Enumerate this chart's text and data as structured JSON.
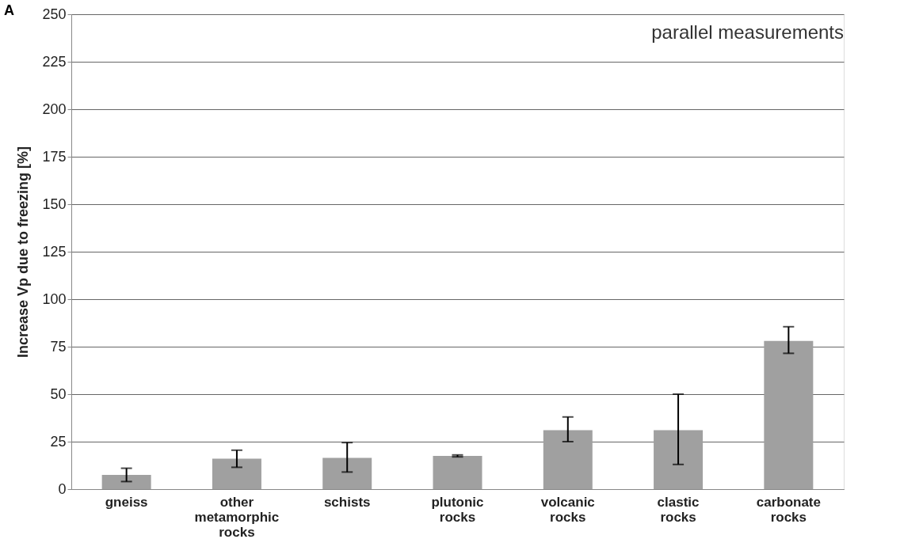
{
  "chart_data": {
    "type": "bar",
    "title": "A",
    "ylabel": "Increase Vp due to freezing [%]",
    "categories": [
      "gneiss",
      "other metamorphic rocks",
      "schists",
      "plutonic rocks",
      "volcanic rocks",
      "clastic rocks",
      "carbonate rocks"
    ],
    "values": [
      7.5,
      16,
      16.5,
      17.5,
      31,
      31,
      78
    ],
    "errors": [
      [
        4,
        11
      ],
      [
        11.5,
        20.5
      ],
      [
        9,
        24.5
      ],
      [
        17,
        18
      ],
      [
        25,
        38
      ],
      [
        13,
        50
      ],
      [
        71.5,
        85.5
      ]
    ],
    "color": "#a0a0a0",
    "ylim": [
      0,
      250
    ],
    "yticks": [
      0,
      25,
      50,
      75,
      100,
      125,
      150,
      175,
      200,
      225,
      250
    ],
    "grid": "y",
    "annotations": [
      "parallel measurements"
    ]
  }
}
